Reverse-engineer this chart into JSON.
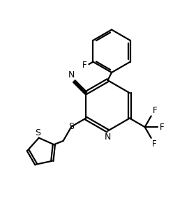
{
  "bg_color": "#ffffff",
  "line_color": "#000000",
  "label_color": "#000000",
  "line_width": 1.6,
  "font_size": 8.5,
  "figsize": [
    2.81,
    3.14
  ],
  "dpi": 100,
  "xlim": [
    0,
    10
  ],
  "ylim": [
    0,
    11.2
  ]
}
